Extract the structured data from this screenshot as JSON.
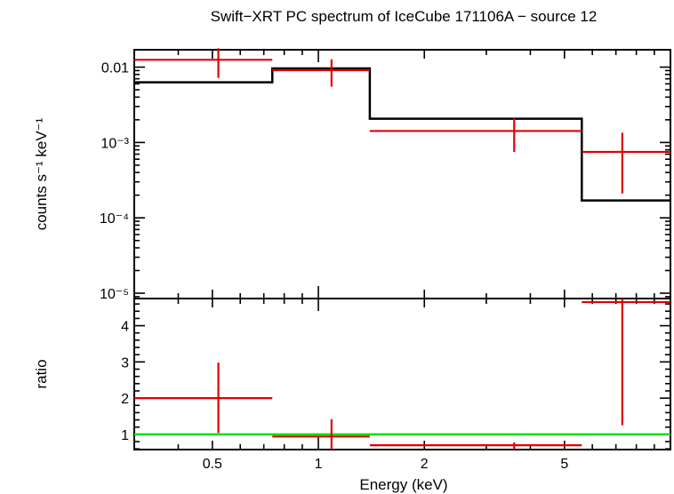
{
  "chart_data": {
    "type": "scatter",
    "title": "Swift−XRT PC spectrum of IceCube 171106A − source 12",
    "xlabel": "Energy (keV)",
    "x_scale": "log",
    "xlim": [
      0.3,
      10
    ],
    "x_ticks": [
      {
        "value": 0.5,
        "label": "0.5"
      },
      {
        "value": 1,
        "label": "1"
      },
      {
        "value": 2,
        "label": "2"
      },
      {
        "value": 5,
        "label": "5"
      }
    ],
    "colors": {
      "data": "#e00000",
      "model": "#000000",
      "unity": "#00e000"
    },
    "panels": [
      {
        "name": "spectrum",
        "ylabel": "counts s⁻¹ keV⁻¹",
        "y_scale": "log",
        "ylim": [
          8.5e-06,
          0.017
        ],
        "y_ticks": [
          {
            "value": 0.01,
            "label": "0.01"
          },
          {
            "value": 0.001,
            "label": "10⁻³"
          },
          {
            "value": 0.0001,
            "label": "10⁻⁴"
          },
          {
            "value": 1e-05,
            "label": "10⁻⁵"
          }
        ],
        "data": [
          {
            "x": 0.52,
            "xlo": 0.3,
            "xhi": 0.74,
            "y": 0.0125,
            "ylo": 0.0072,
            "yhi": 0.0178
          },
          {
            "x": 1.09,
            "xlo": 0.74,
            "xhi": 1.4,
            "y": 0.0091,
            "ylo": 0.0055,
            "yhi": 0.0127
          },
          {
            "x": 3.6,
            "xlo": 1.4,
            "xhi": 5.6,
            "y": 0.00142,
            "ylo": 0.00075,
            "yhi": 0.0021
          },
          {
            "x": 7.3,
            "xlo": 5.6,
            "xhi": 10,
            "y": 0.00075,
            "ylo": 0.00021,
            "yhi": 0.00135
          }
        ],
        "model": [
          {
            "xlo": 0.3,
            "xhi": 0.74,
            "y": 0.0063
          },
          {
            "xlo": 0.74,
            "xhi": 1.4,
            "y": 0.0096
          },
          {
            "xlo": 1.4,
            "xhi": 5.6,
            "y": 0.00207
          },
          {
            "xlo": 5.6,
            "xhi": 10,
            "y": 0.00017
          }
        ]
      },
      {
        "name": "ratio",
        "ylabel": "ratio",
        "y_scale": "linear",
        "ylim": [
          0.58,
          4.75
        ],
        "y_ticks": [
          {
            "value": 1,
            "label": "1"
          },
          {
            "value": 2,
            "label": "2"
          },
          {
            "value": 3,
            "label": "3"
          },
          {
            "value": 4,
            "label": "4"
          }
        ],
        "unity_line": 1,
        "data": [
          {
            "x": 0.52,
            "xlo": 0.3,
            "xhi": 0.74,
            "y": 2.0,
            "ylo": 1.04,
            "yhi": 2.98
          },
          {
            "x": 1.09,
            "xlo": 0.74,
            "xhi": 1.4,
            "y": 0.94,
            "ylo": 0.58,
            "yhi": 1.42
          },
          {
            "x": 3.6,
            "xlo": 1.4,
            "xhi": 5.6,
            "y": 0.7,
            "ylo": 0.58,
            "yhi": 0.78
          },
          {
            "x": 7.3,
            "xlo": 5.6,
            "xhi": 10,
            "y": 4.65,
            "ylo": 1.25,
            "yhi": 4.75
          }
        ]
      }
    ]
  }
}
